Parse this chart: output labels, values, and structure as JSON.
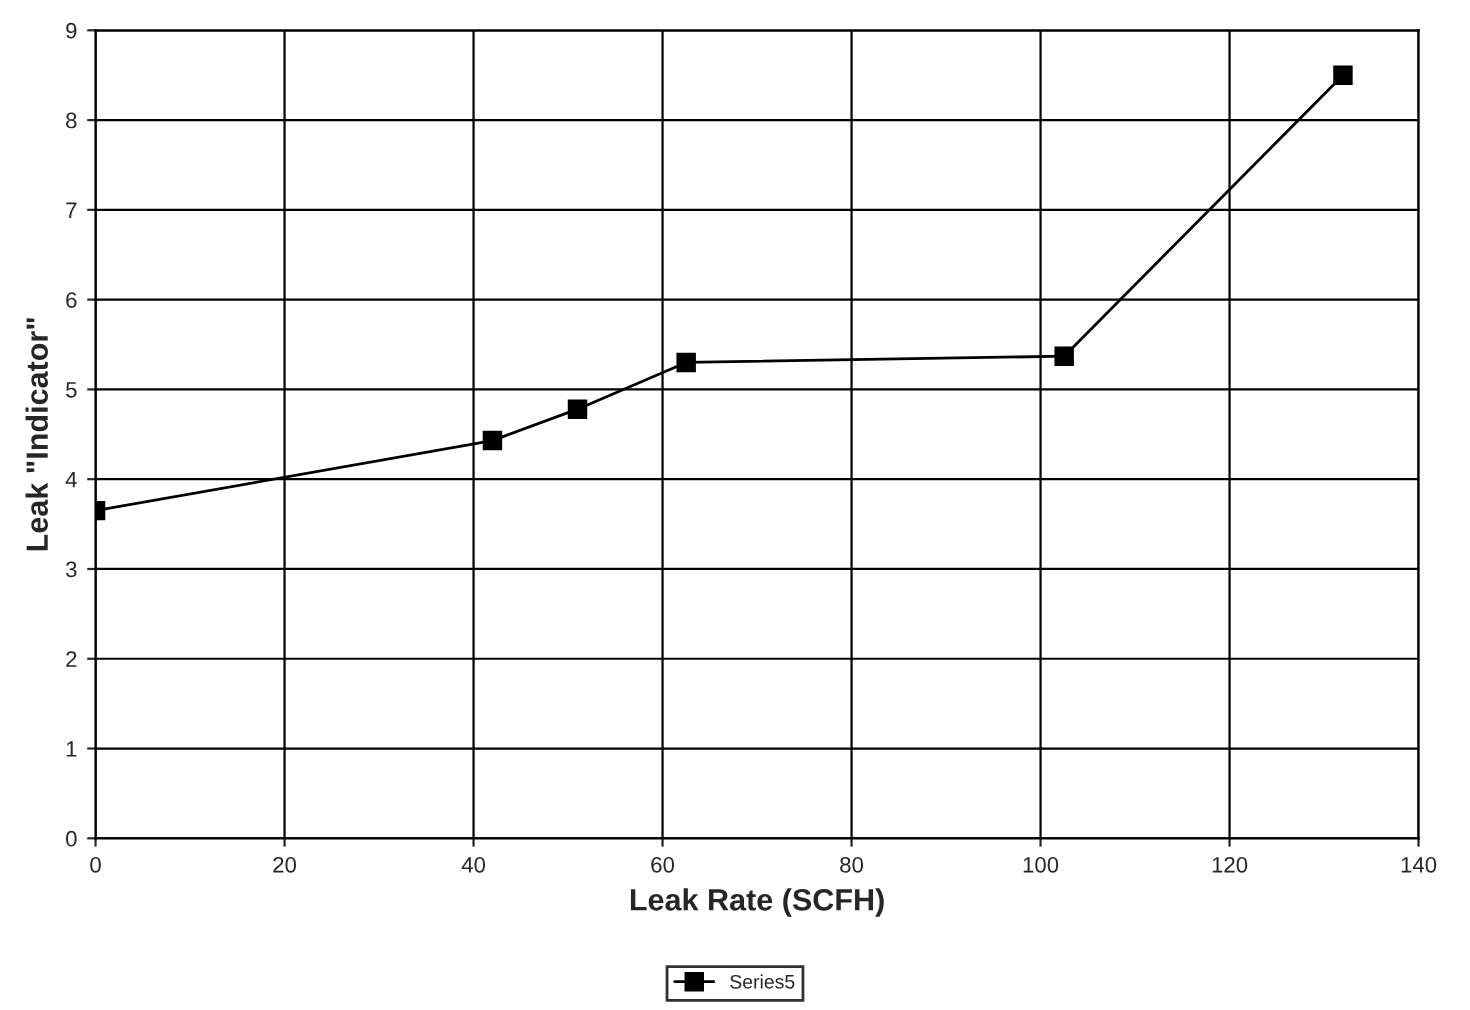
{
  "chart_data": {
    "type": "line",
    "xlabel": "Leak Rate (SCFH)",
    "ylabel": "Leak \"Indicator\"",
    "xlim": [
      0,
      140
    ],
    "xticks": [
      0,
      20,
      40,
      60,
      80,
      100,
      120,
      140
    ],
    "ylim": [
      0,
      9
    ],
    "yticks": [
      0,
      1,
      2,
      3,
      4,
      5,
      6,
      7,
      8,
      9
    ],
    "grid": true,
    "legend": "bottom",
    "marker": "square",
    "line_style": "solid",
    "series": [
      {
        "name": "Series5",
        "color": "#000000",
        "x": [
          0,
          42,
          51,
          62.5,
          102.5,
          132
        ],
        "values": [
          3.65,
          4.43,
          4.78,
          5.3,
          5.37,
          8.5
        ]
      }
    ]
  }
}
